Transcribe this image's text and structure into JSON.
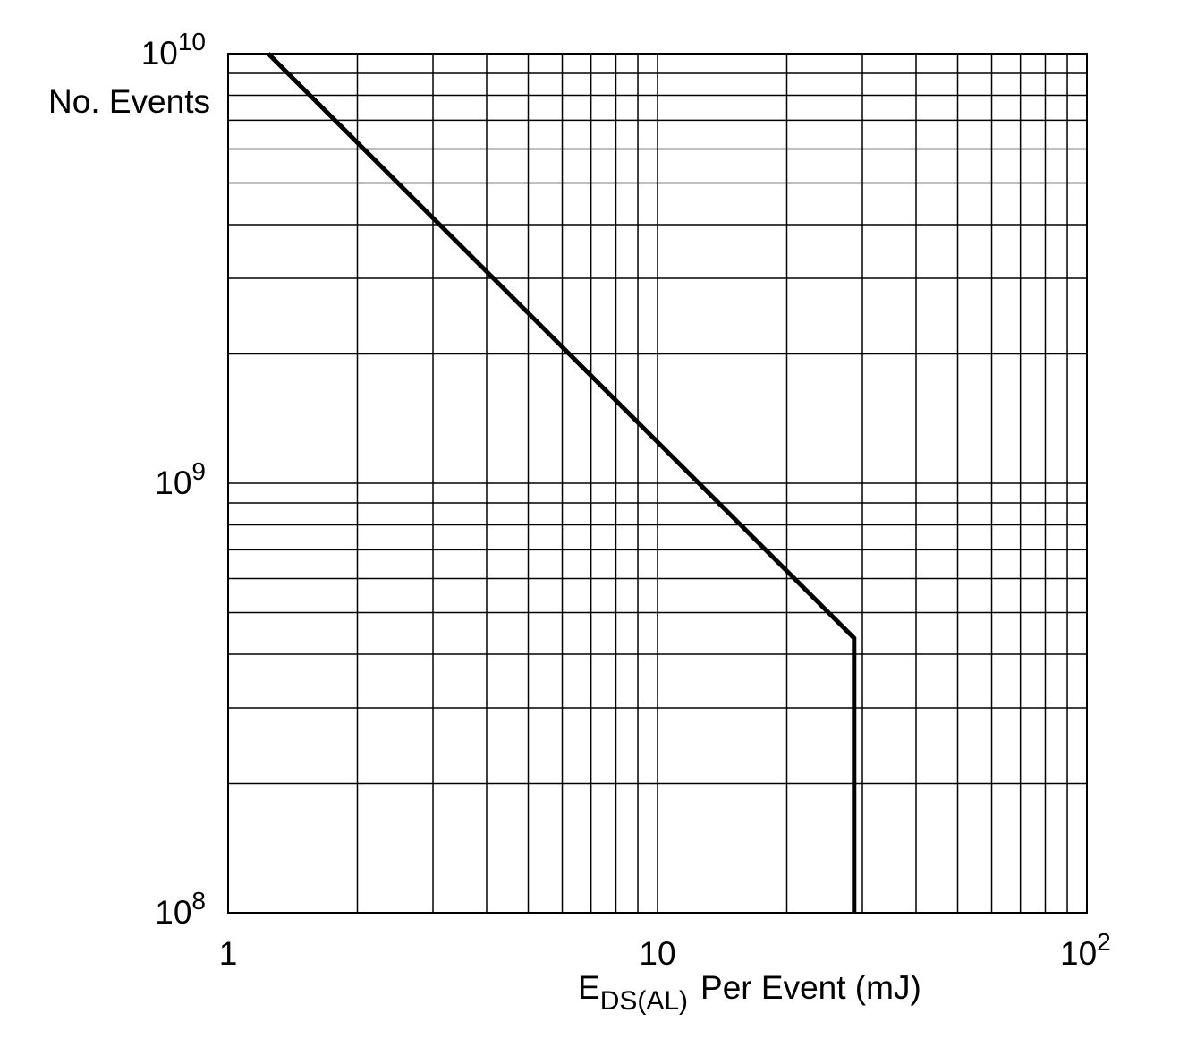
{
  "chart_data": {
    "type": "line",
    "ylabel": "No. Events",
    "xlabel": {
      "text": "E",
      "subscript": "DS(AL)",
      "suffix": "Per Event  (mJ)"
    },
    "x": [
      1.24,
      28.7,
      28.7
    ],
    "series": [
      {
        "color": "#000000",
        "values": [
          10000000000,
          436000000,
          100000000
        ]
      }
    ],
    "xlim": [
      1,
      100
    ],
    "ylim": [
      100000000,
      10000000000
    ],
    "xscale": "log",
    "yscale": "log",
    "xticks": [
      1,
      10,
      {
        "value": 100,
        "label": "10",
        "exponent": "2"
      }
    ],
    "yticks": [
      {
        "value": 100000000,
        "label": "10",
        "exponent": "8"
      },
      {
        "value": 1000000000,
        "label": "10",
        "exponent": "9"
      },
      {
        "value": 10000000000,
        "label": "10",
        "exponent": "10"
      }
    ],
    "grid": true,
    "minor_grid": true
  }
}
